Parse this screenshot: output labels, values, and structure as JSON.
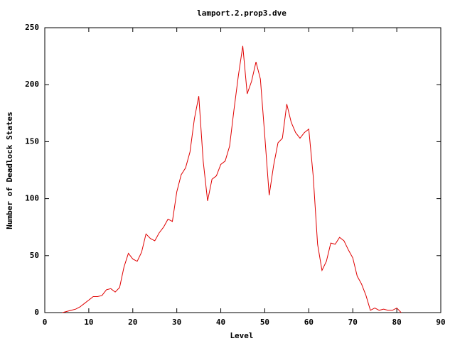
{
  "chart_data": {
    "type": "line",
    "title": "lamport.2.prop3.dve",
    "x_label": "Level",
    "y_label": "Number of Deadlock States",
    "x": [
      4,
      5,
      6,
      7,
      8,
      9,
      10,
      11,
      12,
      13,
      14,
      15,
      16,
      17,
      18,
      19,
      20,
      21,
      22,
      23,
      24,
      25,
      26,
      27,
      28,
      29,
      30,
      31,
      32,
      33,
      34,
      35,
      36,
      37,
      38,
      39,
      40,
      41,
      42,
      43,
      44,
      45,
      46,
      47,
      48,
      49,
      50,
      51,
      52,
      53,
      54,
      55,
      56,
      57,
      58,
      59,
      60,
      61,
      62,
      63,
      64,
      65,
      66,
      67,
      68,
      69,
      70,
      71,
      72,
      73,
      74,
      75,
      76,
      77,
      78,
      79,
      80,
      81
    ],
    "values": [
      0,
      1,
      2,
      3,
      5,
      8,
      11,
      14,
      14,
      15,
      20,
      21,
      18,
      22,
      40,
      52,
      47,
      45,
      53,
      69,
      65,
      63,
      70,
      75,
      82,
      80,
      106,
      121,
      127,
      141,
      170,
      190,
      133,
      98,
      117,
      120,
      130,
      133,
      146,
      178,
      208,
      234,
      192,
      203,
      220,
      205,
      155,
      103,
      129,
      149,
      153,
      183,
      167,
      158,
      153,
      158,
      161,
      120,
      60,
      37,
      45,
      61,
      60,
      66,
      63,
      55,
      48,
      32,
      25,
      15,
      2,
      4,
      2,
      3,
      2,
      2,
      4,
      0
    ],
    "color": "#e00000",
    "xlim": [
      0,
      90
    ],
    "xticks": [
      0,
      10,
      20,
      30,
      40,
      50,
      60,
      70,
      80,
      90
    ],
    "ylim": [
      0,
      250
    ],
    "yticks": [
      0,
      50,
      100,
      150,
      200,
      250
    ]
  }
}
